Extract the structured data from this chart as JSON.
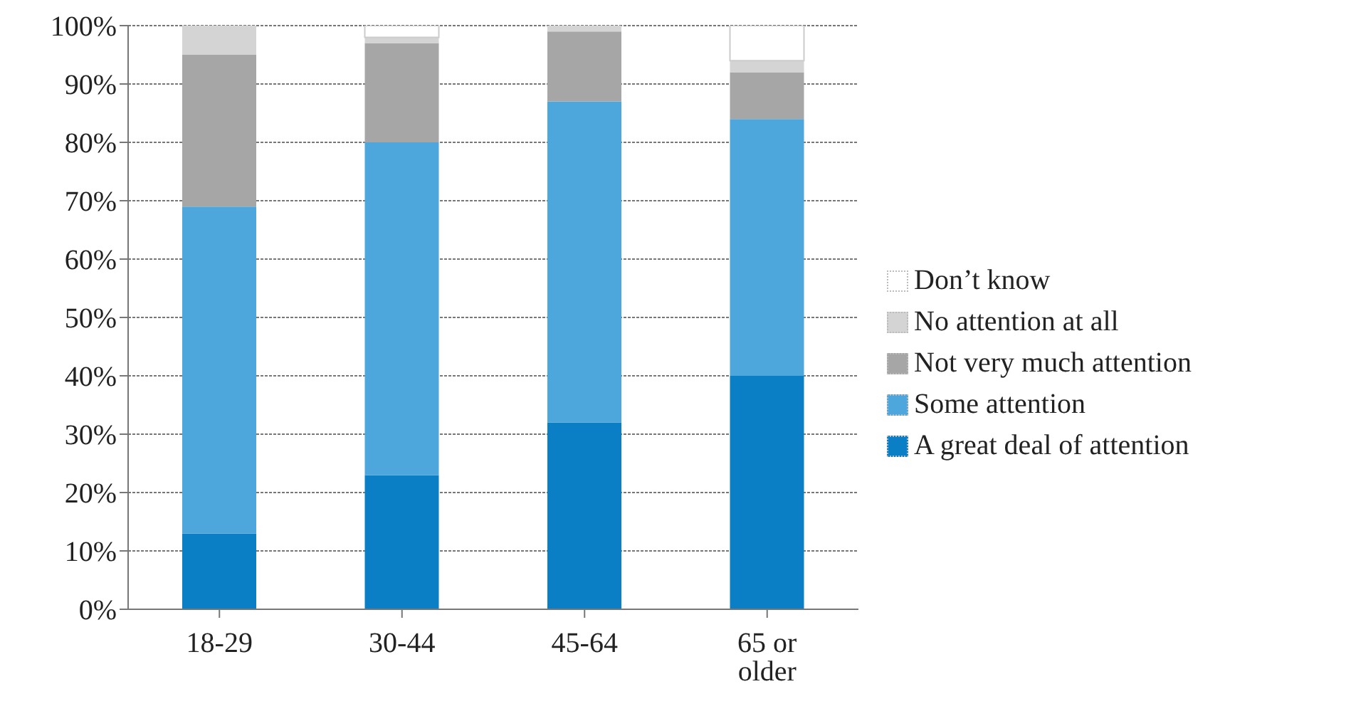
{
  "chart_data": {
    "type": "bar",
    "stacked": true,
    "categories": [
      "18-29",
      "30-44",
      "45-64",
      "65 or older"
    ],
    "series": [
      {
        "name": "A great deal of attention",
        "color": "#0a7fc6",
        "values": [
          13,
          23,
          32,
          40
        ]
      },
      {
        "name": "Some attention",
        "color": "#4da6dc",
        "values": [
          56,
          57,
          55,
          44
        ]
      },
      {
        "name": "Not very much attention",
        "color": "#a6a6a6",
        "values": [
          26,
          17,
          12,
          8
        ]
      },
      {
        "name": "No attention at all",
        "color": "#d4d4d4",
        "values": [
          5,
          1,
          1,
          2
        ]
      },
      {
        "name": "Don’t know",
        "color": "#ffffff",
        "values": [
          0,
          2,
          0,
          6
        ]
      }
    ],
    "ylim": [
      0,
      100
    ],
    "yticks": [
      {
        "value": 0,
        "label": "0%"
      },
      {
        "value": 10,
        "label": "10%"
      },
      {
        "value": 20,
        "label": "20%"
      },
      {
        "value": 30,
        "label": "30%"
      },
      {
        "value": 40,
        "label": "40%"
      },
      {
        "value": 50,
        "label": "50%"
      },
      {
        "value": 60,
        "label": "60%"
      },
      {
        "value": 70,
        "label": "70%"
      },
      {
        "value": 80,
        "label": "80%"
      },
      {
        "value": 90,
        "label": "90%"
      },
      {
        "value": 100,
        "label": "100%"
      }
    ],
    "grid": "y",
    "legend": "right"
  }
}
